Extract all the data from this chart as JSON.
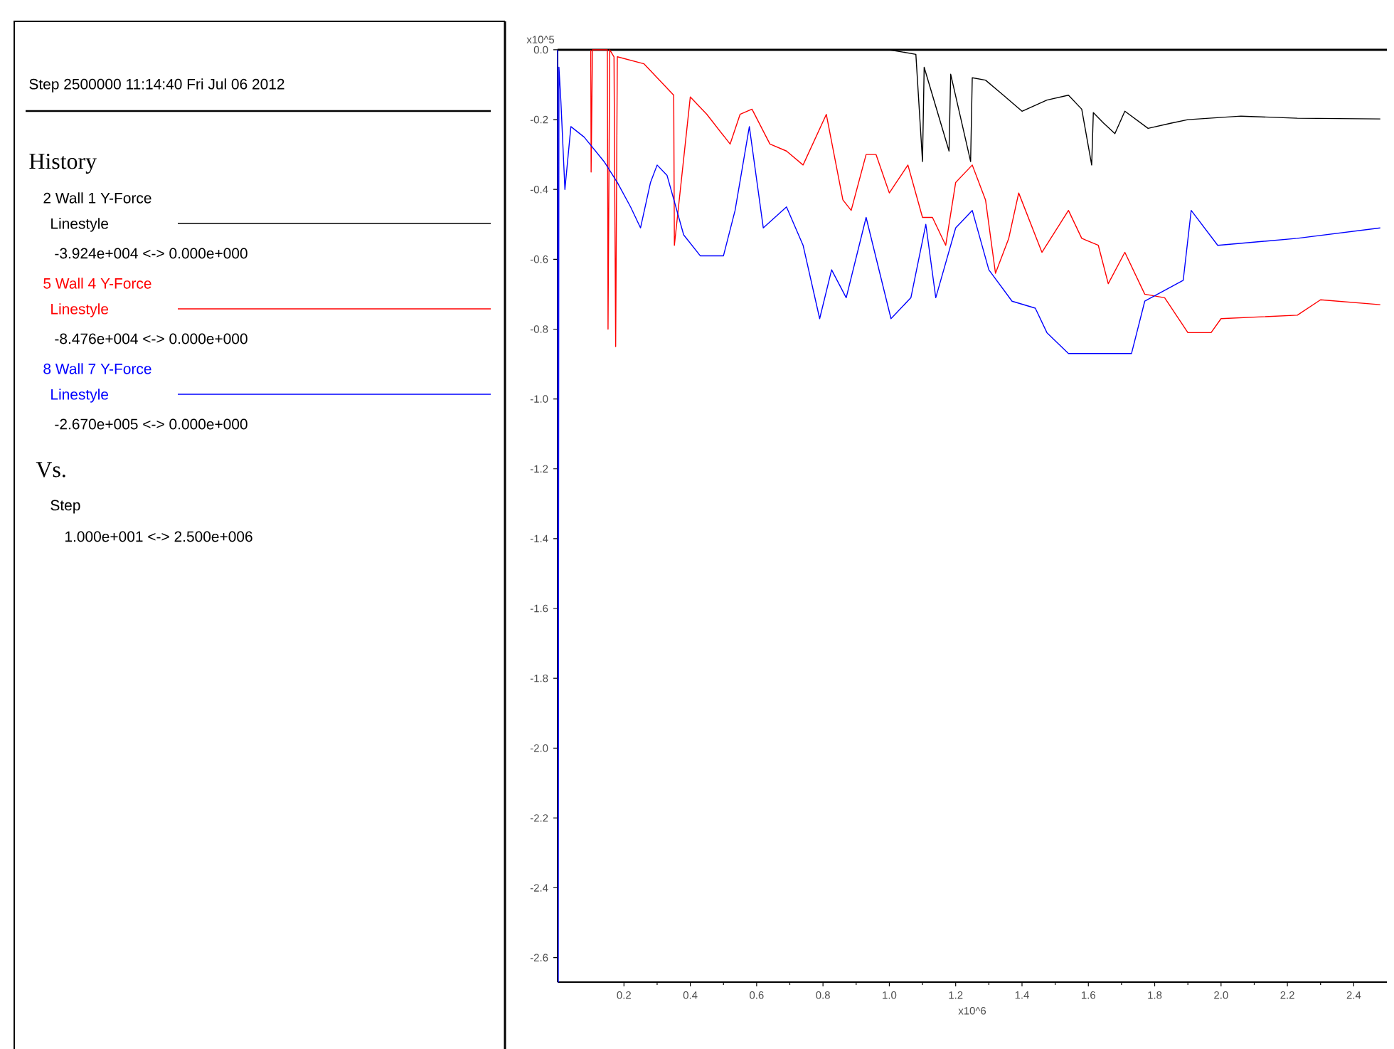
{
  "chart_data": {
    "type": "line",
    "annotations": [
      "Step 2500000  11:14:40 Fri Jul 06 2012",
      "Linestyle",
      "-3.924e+004 <-> 0.000e+000",
      "Linestyle",
      "-8.476e+004 <-> 0.000e+000",
      "Linestyle",
      "-2.670e+005 <-> 0.000e+000",
      "Vs.",
      "Step",
      "1.000e+001 <-> 2.500e+006"
    ],
    "legend_title": "History",
    "legend": "left",
    "grid": false,
    "marker": "none",
    "line_style": "solid",
    "xlabel": "x10^6",
    "ylabel": "x10^5",
    "xlim": [
      0,
      2.5
    ],
    "ylim": [
      -2.67,
      0
    ],
    "xticks": [
      {
        "value": 0.2,
        "label": "0.2"
      },
      {
        "value": 0.4,
        "label": "0.4"
      },
      {
        "value": 0.6,
        "label": "0.6"
      },
      {
        "value": 0.8,
        "label": "0.8"
      },
      {
        "value": 1.0,
        "label": "1.0"
      },
      {
        "value": 1.2,
        "label": "1.2"
      },
      {
        "value": 1.4,
        "label": "1.4"
      },
      {
        "value": 1.6,
        "label": "1.6"
      },
      {
        "value": 1.8,
        "label": "1.8"
      },
      {
        "value": 2.0,
        "label": "2.0"
      },
      {
        "value": 2.2,
        "label": "2.2"
      },
      {
        "value": 2.4,
        "label": "2.4"
      }
    ],
    "yticks": [
      {
        "value": 0,
        "label": "0.0"
      },
      {
        "value": -0.2,
        "label": "-0.2"
      },
      {
        "value": -0.4,
        "label": "-0.4"
      },
      {
        "value": -0.6,
        "label": "-0.6"
      },
      {
        "value": -0.8,
        "label": "-0.8"
      },
      {
        "value": -1.0,
        "label": "-1.0"
      },
      {
        "value": -1.2,
        "label": "-1.2"
      },
      {
        "value": -1.4,
        "label": "-1.4"
      },
      {
        "value": -1.6,
        "label": "-1.6"
      },
      {
        "value": -1.8,
        "label": "-1.8"
      },
      {
        "value": -2.0,
        "label": "-2.0"
      },
      {
        "value": -2.2,
        "label": "-2.2"
      },
      {
        "value": -2.4,
        "label": "-2.4"
      },
      {
        "value": -2.6,
        "label": "-2.6"
      }
    ],
    "series": [
      {
        "name": "2 Wall 1 Y-Force",
        "color": "#000000",
        "x": [
          0,
          1.0,
          1.08,
          1.1,
          1.105,
          1.18,
          1.185,
          1.245,
          1.25,
          1.29,
          1.34,
          1.4,
          1.475,
          1.54,
          1.58,
          1.61,
          1.615,
          1.646,
          1.68,
          1.71,
          1.78,
          1.85,
          1.9,
          2.06,
          2.23,
          2.48
        ],
        "values": [
          0,
          0,
          -0.013,
          -0.32,
          -0.05,
          -0.29,
          -0.07,
          -0.32,
          -0.08,
          -0.087,
          -0.127,
          -0.176,
          -0.144,
          -0.13,
          -0.17,
          -0.33,
          -0.18,
          -0.21,
          -0.24,
          -0.176,
          -0.225,
          -0.21,
          -0.2,
          -0.19,
          -0.196,
          -0.198
        ]
      },
      {
        "name": "5 Wall 4 Y-Force",
        "color": "#ff0000",
        "x": [
          0.1,
          0.101,
          0.105,
          0.15,
          0.152,
          0.157,
          0.17,
          0.175,
          0.18,
          0.26,
          0.3,
          0.35,
          0.352,
          0.4,
          0.45,
          0.52,
          0.55,
          0.586,
          0.64,
          0.69,
          0.74,
          0.81,
          0.86,
          0.885,
          0.93,
          0.96,
          1.0,
          1.056,
          1.1,
          1.13,
          1.17,
          1.2,
          1.25,
          1.29,
          1.32,
          1.36,
          1.39,
          1.46,
          1.54,
          1.58,
          1.63,
          1.66,
          1.71,
          1.77,
          1.83,
          1.9,
          1.97,
          2.0,
          2.23,
          2.3,
          2.48
        ],
        "values": [
          0,
          -0.35,
          0,
          0,
          -0.8,
          0,
          -0.02,
          -0.85,
          -0.02,
          -0.04,
          -0.08,
          -0.13,
          -0.56,
          -0.135,
          -0.185,
          -0.27,
          -0.185,
          -0.17,
          -0.27,
          -0.29,
          -0.33,
          -0.185,
          -0.43,
          -0.46,
          -0.3,
          -0.3,
          -0.41,
          -0.33,
          -0.48,
          -0.48,
          -0.56,
          -0.38,
          -0.33,
          -0.43,
          -0.64,
          -0.54,
          -0.41,
          -0.58,
          -0.46,
          -0.54,
          -0.56,
          -0.67,
          -0.58,
          -0.7,
          -0.71,
          -0.81,
          -0.81,
          -0.77,
          -0.76,
          -0.716,
          -0.73
        ]
      },
      {
        "name": "8 Wall 7 Y-Force",
        "color": "#0000ff",
        "x": [
          0,
          0.002,
          0.004,
          0.01,
          0.022,
          0.04,
          0.08,
          0.14,
          0.18,
          0.22,
          0.25,
          0.28,
          0.3,
          0.33,
          0.38,
          0.43,
          0.5,
          0.535,
          0.578,
          0.62,
          0.69,
          0.74,
          0.79,
          0.826,
          0.87,
          0.93,
          1.005,
          1.065,
          1.11,
          1.14,
          1.2,
          1.25,
          1.3,
          1.37,
          1.44,
          1.475,
          1.54,
          1.646,
          1.73,
          1.77,
          1.886,
          1.91,
          1.99,
          2.23,
          2.48
        ],
        "values": [
          0,
          -2.67,
          -0.05,
          -0.15,
          -0.4,
          -0.22,
          -0.25,
          -0.32,
          -0.38,
          -0.45,
          -0.51,
          -0.38,
          -0.33,
          -0.36,
          -0.53,
          -0.59,
          -0.59,
          -0.46,
          -0.22,
          -0.51,
          -0.45,
          -0.56,
          -0.77,
          -0.63,
          -0.71,
          -0.48,
          -0.77,
          -0.71,
          -0.5,
          -0.71,
          -0.51,
          -0.46,
          -0.63,
          -0.72,
          -0.74,
          -0.81,
          -0.87,
          -0.87,
          -0.87,
          -0.72,
          -0.66,
          -0.46,
          -0.56,
          -0.54,
          -0.51
        ]
      }
    ]
  }
}
